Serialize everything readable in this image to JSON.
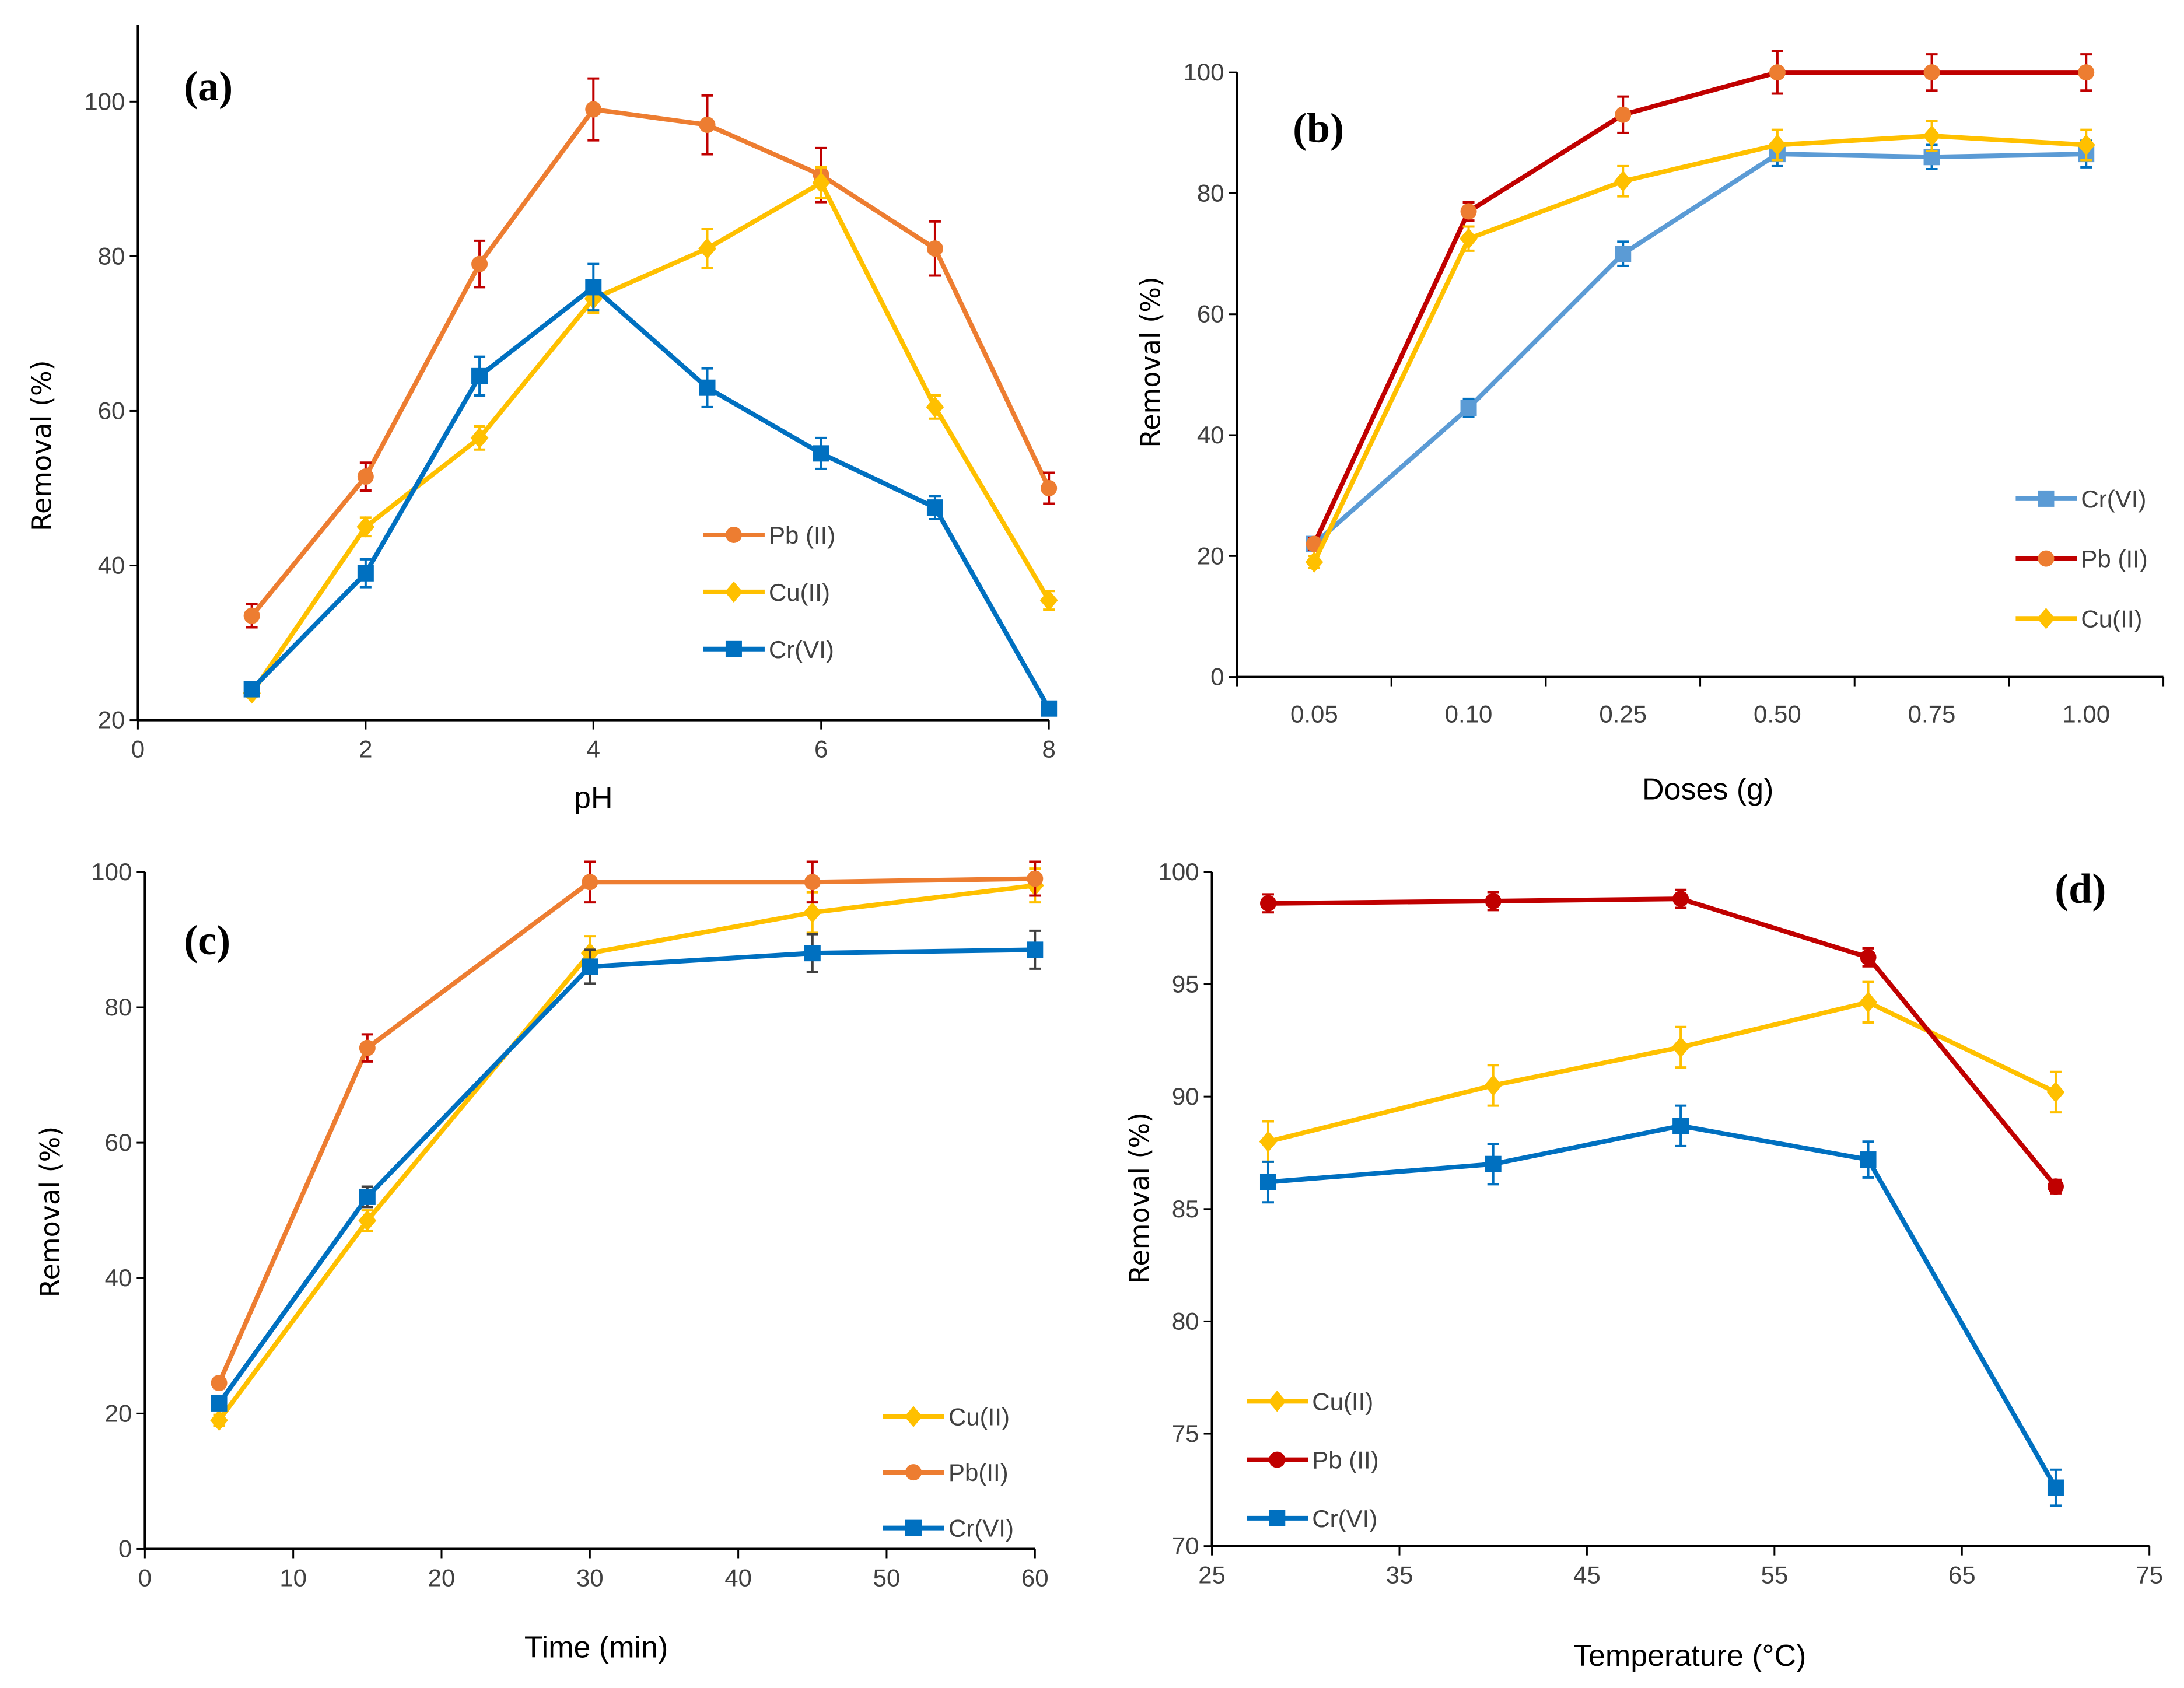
{
  "colors": {
    "orange": "#ED7D31",
    "yellow": "#FFC000",
    "blue": "#0070C0",
    "light_blue": "#5B9BD5",
    "dark_red": "#C00000"
  },
  "chart_data": [
    {
      "type": "line",
      "panel_label": "(a)",
      "xlabel": "pH",
      "ylabel": "Removal (%)",
      "x_type": "linear",
      "xlim": [
        0,
        8
      ],
      "xticks": [
        0,
        2,
        4,
        6,
        8
      ],
      "ylim": [
        20,
        110
      ],
      "yticks": [
        20,
        40,
        60,
        80,
        100
      ],
      "grid": false,
      "legend": "center-right",
      "x": [
        1,
        2,
        3,
        4,
        5,
        6,
        7,
        8
      ],
      "series": [
        {
          "name": "Pb (II)",
          "marker": "circle",
          "line_color": "#ED7D31",
          "marker_color": "#ED7D31",
          "error_color": "#C00000",
          "values": [
            33.5,
            51.5,
            79,
            99,
            97,
            90.5,
            81,
            50
          ],
          "errors": [
            1.5,
            1.8,
            3,
            4,
            3.8,
            3.5,
            3.5,
            2
          ]
        },
        {
          "name": "Cu(II)",
          "marker": "diamond",
          "line_color": "#FFC000",
          "marker_color": "#FFC000",
          "error_color": "#FFC000",
          "values": [
            23.5,
            45,
            56.5,
            74.5,
            81,
            89.5,
            60.5,
            35.5
          ],
          "errors": [
            0.5,
            1.2,
            1.5,
            1.8,
            2.5,
            2,
            1.5,
            1.2
          ]
        },
        {
          "name": "Cr(VI)",
          "marker": "square",
          "line_color": "#0070C0",
          "marker_color": "#0070C0",
          "error_color": "#0070C0",
          "values": [
            24,
            39,
            64.5,
            76,
            63,
            54.5,
            47.5,
            21.5
          ],
          "errors": [
            0.5,
            1.8,
            2.5,
            3,
            2.5,
            2,
            1.5,
            0.5
          ]
        }
      ]
    },
    {
      "type": "line",
      "panel_label": "(b)",
      "xlabel": "Doses (g)",
      "ylabel": "Removal (%)",
      "x_type": "category",
      "categories": [
        "0.05",
        "0.10",
        "0.25",
        "0.50",
        "0.75",
        "1.00"
      ],
      "ylim": [
        0,
        100
      ],
      "yticks": [
        0,
        20,
        40,
        60,
        80,
        100
      ],
      "grid": false,
      "legend": "bottom-right",
      "series": [
        {
          "name": "Cr(VI)",
          "marker": "square",
          "line_color": "#5B9BD5",
          "marker_color": "#5B9BD5",
          "error_color": "#0070C0",
          "values": [
            22,
            44.5,
            70,
            86.5,
            86,
            86.5
          ],
          "errors": [
            1,
            1.5,
            2,
            2,
            2,
            2.2
          ]
        },
        {
          "name": "Pb (II)",
          "marker": "circle",
          "line_color": "#C00000",
          "marker_color": "#ED7D31",
          "error_color": "#C00000",
          "values": [
            22,
            77,
            93,
            100,
            100,
            100
          ],
          "errors": [
            1,
            1.5,
            3,
            3.5,
            3,
            3
          ]
        },
        {
          "name": "Cu(II)",
          "marker": "diamond",
          "line_color": "#FFC000",
          "marker_color": "#FFC000",
          "error_color": "#FFC000",
          "values": [
            19,
            72.5,
            82,
            88,
            89.5,
            88
          ],
          "errors": [
            1,
            2,
            2.5,
            2.5,
            2.5,
            2.5
          ]
        }
      ]
    },
    {
      "type": "line",
      "panel_label": "(c)",
      "xlabel": "Time  (min)",
      "ylabel": "Removal (%)",
      "x_type": "linear",
      "xlim": [
        0,
        60
      ],
      "xticks": [
        0,
        10,
        20,
        30,
        40,
        50,
        60
      ],
      "ylim": [
        0,
        100
      ],
      "yticks": [
        0,
        20,
        40,
        60,
        80,
        100
      ],
      "grid": false,
      "legend": "bottom-right",
      "x": [
        5,
        15,
        30,
        45,
        60
      ],
      "series": [
        {
          "name": "Cu(II)",
          "marker": "diamond",
          "line_color": "#FFC000",
          "marker_color": "#FFC000",
          "error_color": "#FFC000",
          "values": [
            19,
            48.5,
            88,
            94,
            98
          ],
          "errors": [
            0.8,
            1.5,
            2.5,
            3,
            2.5
          ]
        },
        {
          "name": "Pb(II)",
          "marker": "circle",
          "line_color": "#ED7D31",
          "marker_color": "#ED7D31",
          "error_color": "#C00000",
          "values": [
            24.5,
            74,
            98.5,
            98.5,
            99
          ],
          "errors": [
            0.8,
            2,
            3,
            3,
            2.5
          ]
        },
        {
          "name": "Cr(VI)",
          "marker": "square",
          "line_color": "#0070C0",
          "marker_color": "#0070C0",
          "error_color": "#404040",
          "values": [
            21.5,
            52,
            86,
            88,
            88.5
          ],
          "errors": [
            1,
            1.5,
            2.5,
            2.8,
            2.8
          ]
        }
      ]
    },
    {
      "type": "line",
      "panel_label": "(d)",
      "xlabel": "Temperature (°C)",
      "ylabel": "Removal (%)",
      "x_type": "linear",
      "xlim": [
        25,
        75
      ],
      "xticks": [
        25,
        35,
        45,
        55,
        65,
        75
      ],
      "ylim": [
        70,
        100
      ],
      "yticks": [
        70,
        75,
        80,
        85,
        90,
        95,
        100
      ],
      "grid": false,
      "legend": "bottom-left",
      "x": [
        28,
        40,
        50,
        60,
        70
      ],
      "series": [
        {
          "name": "Cu(II)",
          "marker": "diamond",
          "line_color": "#FFC000",
          "marker_color": "#FFC000",
          "error_color": "#FFC000",
          "values": [
            88,
            90.5,
            92.2,
            94.2,
            90.2
          ],
          "errors": [
            0.9,
            0.9,
            0.9,
            0.9,
            0.9
          ]
        },
        {
          "name": "Pb (II)",
          "marker": "circle",
          "line_color": "#C00000",
          "marker_color": "#C00000",
          "error_color": "#C00000",
          "values": [
            98.6,
            98.7,
            98.8,
            96.2,
            86
          ],
          "errors": [
            0.4,
            0.4,
            0.4,
            0.4,
            0.3
          ]
        },
        {
          "name": "Cr(VI)",
          "marker": "square",
          "line_color": "#0070C0",
          "marker_color": "#0070C0",
          "error_color": "#0070C0",
          "values": [
            86.2,
            87,
            88.7,
            87.2,
            72.6
          ],
          "errors": [
            0.9,
            0.9,
            0.9,
            0.8,
            0.8
          ]
        }
      ]
    }
  ]
}
